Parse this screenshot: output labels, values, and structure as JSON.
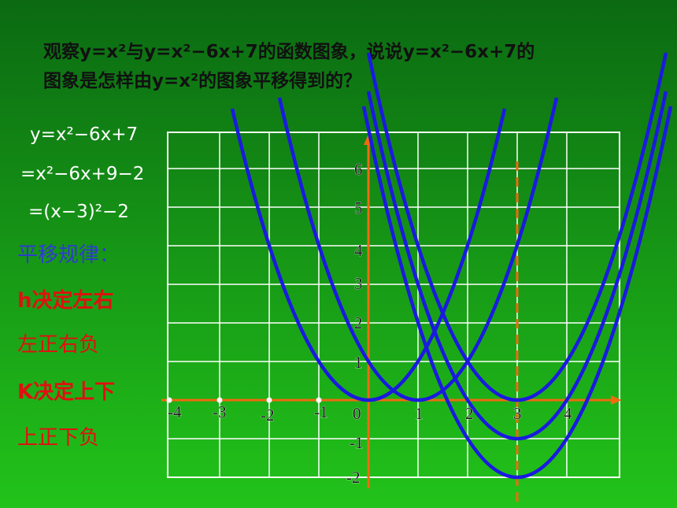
{
  "header": {
    "lines": [
      "观察y=x²与y=x²−6x+7的函数图象，说说y=x²−6x+7的",
      "图象是怎样由y=x²的图象平移得到的？"
    ]
  },
  "derivation": [
    "y=x²−6x+7",
    "=x²−6x+9−2",
    "=(x−3)²−2"
  ],
  "rules": {
    "heading": "平移规律：",
    "items": [
      "h决定左右",
      "左正右负",
      "K决定上下",
      "上正下负"
    ]
  },
  "graph": {
    "x_tick_labels": [
      "-4",
      "-3",
      "-2",
      "-1",
      "0",
      "1",
      "2",
      "3",
      "4"
    ],
    "y_tick_labels": [
      "6",
      "5",
      "4",
      "3",
      "2",
      "1",
      "-1",
      "-2"
    ]
  }
}
